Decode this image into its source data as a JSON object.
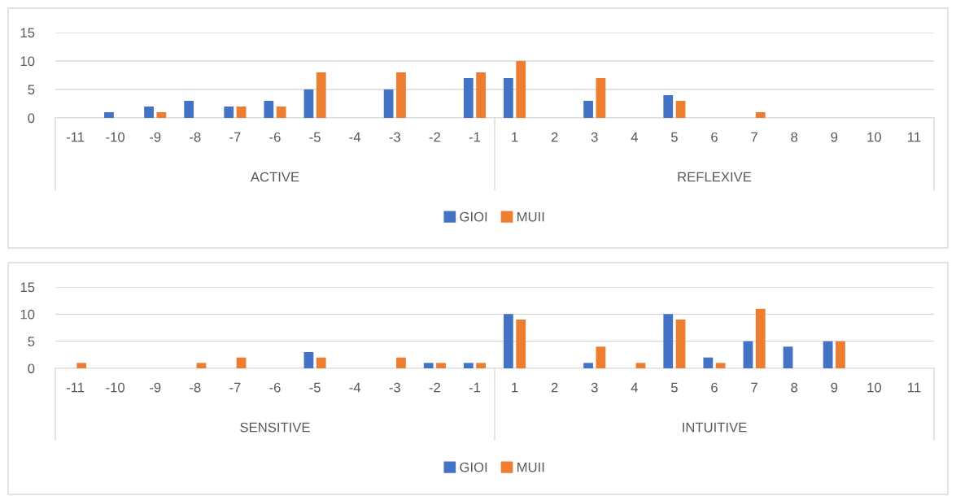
{
  "chart_data": [
    {
      "type": "bar",
      "categories": [
        "-11",
        "-10",
        "-9",
        "-8",
        "-7",
        "-6",
        "-5",
        "-4",
        "-3",
        "-2",
        "-1",
        "1",
        "2",
        "3",
        "4",
        "5",
        "6",
        "7",
        "8",
        "9",
        "10",
        "11"
      ],
      "series": [
        {
          "name": "GIOI",
          "color": "#4472c4",
          "values": [
            0,
            1,
            2,
            3,
            2,
            3,
            5,
            0,
            5,
            0,
            7,
            7,
            0,
            3,
            0,
            4,
            0,
            0,
            0,
            0,
            0,
            0
          ]
        },
        {
          "name": "MUII",
          "color": "#ed7d31",
          "values": [
            0,
            0,
            1,
            0,
            2,
            2,
            8,
            0,
            8,
            0,
            8,
            10,
            0,
            7,
            0,
            3,
            0,
            1,
            0,
            0,
            0,
            0
          ]
        }
      ],
      "annotations": [
        "ACTIVE",
        "REFLEXIVE"
      ],
      "ylim": [
        0,
        15
      ],
      "yticks": [
        0,
        5,
        10,
        15
      ],
      "grid": "y",
      "legend": "bottom"
    },
    {
      "type": "bar",
      "categories": [
        "-11",
        "-10",
        "-9",
        "-8",
        "-7",
        "-6",
        "-5",
        "-4",
        "-3",
        "-2",
        "-1",
        "1",
        "2",
        "3",
        "4",
        "5",
        "6",
        "7",
        "8",
        "9",
        "10",
        "11"
      ],
      "series": [
        {
          "name": "GIOI",
          "color": "#4472c4",
          "values": [
            0,
            0,
            0,
            0,
            0,
            0,
            3,
            0,
            0,
            1,
            1,
            10,
            0,
            1,
            0,
            10,
            2,
            5,
            4,
            5,
            0,
            0
          ]
        },
        {
          "name": "MUII",
          "color": "#ed7d31",
          "values": [
            1,
            0,
            0,
            1,
            2,
            0,
            2,
            0,
            2,
            1,
            1,
            9,
            0,
            4,
            1,
            9,
            1,
            11,
            0,
            5,
            0,
            0
          ]
        }
      ],
      "annotations": [
        "SENSITIVE",
        "INTUITIVE"
      ],
      "ylim": [
        0,
        15
      ],
      "yticks": [
        0,
        5,
        10,
        15
      ],
      "grid": "y",
      "legend": "bottom"
    }
  ]
}
